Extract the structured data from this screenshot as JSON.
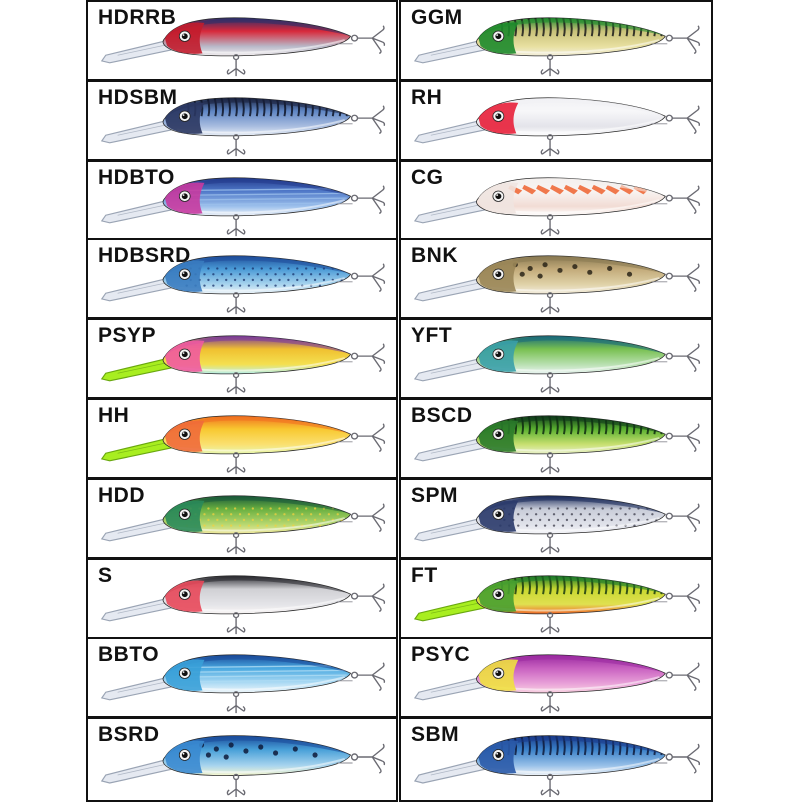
{
  "lures": [
    {
      "code": "HDRRB",
      "top": "#2a2f6a",
      "body": "#d8283a",
      "belly": "#f2eef0",
      "head": "#c21c2c",
      "pattern": "none",
      "accent": "#1a1a1a",
      "lip": "clear",
      "stripe": "#b8b8c8"
    },
    {
      "code": "GGM",
      "top": "#1f8a2e",
      "body": "#c9c27a",
      "belly": "#f2eedb",
      "head": "#1d8a2b",
      "pattern": "bars",
      "accent": "#1a1a1a",
      "lip": "clear",
      "stripe": "#e8e0a0"
    },
    {
      "code": "HDSBM",
      "top": "#1b2340",
      "body": "#5f86c4",
      "belly": "#e8eef6",
      "head": "#2a3660",
      "pattern": "bars",
      "accent": "#0e1426",
      "lip": "clear",
      "stripe": "#a9bde0"
    },
    {
      "code": "RH",
      "top": "#f1f1f4",
      "body": "#f7f7f9",
      "belly": "#ffffff",
      "head": "#e8203a",
      "pattern": "none",
      "accent": "#c8c8cc",
      "lip": "clear",
      "stripe": "#e4e4ea"
    },
    {
      "code": "HDBTO",
      "top": "#233a8c",
      "body": "#4f78c8",
      "belly": "#eef2f8",
      "head": "#c83aa0",
      "pattern": "stripes",
      "accent": "#1a2a6a",
      "lip": "clear",
      "stripe": "#9cc0ec"
    },
    {
      "code": "CG",
      "top": "#f4f0ee",
      "body": "#f8f4f2",
      "belly": "#ffffff",
      "head": "#f0e4e0",
      "pattern": "orange",
      "accent": "#ee6a3a",
      "lip": "clear",
      "stripe": "#f2dcd4"
    },
    {
      "code": "HDBSRD",
      "top": "#1f4d9a",
      "body": "#4a9ad6",
      "belly": "#eef4f8",
      "head": "#3a7cc0",
      "pattern": "dots",
      "accent": "#18306a",
      "lip": "clear",
      "stripe": "#a8d4ee"
    },
    {
      "code": "BNK",
      "top": "#8a7a52",
      "body": "#c2aa7a",
      "belly": "#f2ecdc",
      "head": "#9a8658",
      "pattern": "spots",
      "accent": "#2a2418",
      "lip": "clear",
      "stripe": "#e0d2a8"
    },
    {
      "code": "PSYP",
      "top": "#7a3a9a",
      "body": "#f0c030",
      "belly": "#b8f0ee",
      "head": "#f05aa0",
      "pattern": "none",
      "accent": "#48b8e0",
      "lip": "chartreuse",
      "stripe": "#f4e050"
    },
    {
      "code": "YFT",
      "top": "#1a6a7a",
      "body": "#78c050",
      "belly": "#eaf4f2",
      "head": "#3aa0a8",
      "pattern": "none",
      "accent": "#e8d030",
      "lip": "clear",
      "stripe": "#b8e0b0"
    },
    {
      "code": "HH",
      "top": "#f07020",
      "body": "#f8c830",
      "belly": "#e8f8b0",
      "head": "#f06a3a",
      "pattern": "none",
      "accent": "#f0d030",
      "lip": "chartreuse",
      "stripe": "#fae070"
    },
    {
      "code": "BSCD",
      "top": "#0e3a1a",
      "body": "#5ab030",
      "belly": "#e8f0c8",
      "head": "#2a7a2a",
      "pattern": "bars",
      "accent": "#0e2a10",
      "lip": "clear",
      "stripe": "#c8e070"
    },
    {
      "code": "HDD",
      "top": "#1a5a3a",
      "body": "#6ab040",
      "belly": "#f0e8a0",
      "head": "#2a8a5a",
      "pattern": "dots",
      "accent": "#f0d040",
      "lip": "clear",
      "stripe": "#b8d870"
    },
    {
      "code": "SPM",
      "top": "#1a2a5a",
      "body": "#c8ccd8",
      "belly": "#f4f4f8",
      "head": "#2a3a6a",
      "pattern": "dots",
      "accent": "#3a3a48",
      "lip": "clear",
      "stripe": "#e0e2ea"
    },
    {
      "code": "S",
      "top": "#2a2a30",
      "body": "#d0d0d4",
      "belly": "#f8f4f4",
      "head": "#e8485a",
      "pattern": "none",
      "accent": "#b0b0b8",
      "lip": "clear",
      "stripe": "#e4e4e8"
    },
    {
      "code": "FT",
      "top": "#1a7a2a",
      "body": "#c8d830",
      "belly": "#f06a2a",
      "head": "#48a030",
      "pattern": "bars",
      "accent": "#1a3a10",
      "lip": "chartreuse",
      "stripe": "#e0e050"
    },
    {
      "code": "BBTO",
      "top": "#1a4a9a",
      "body": "#48a8e0",
      "belly": "#eef6fa",
      "head": "#38a0d8",
      "pattern": "stripes",
      "accent": "#0e2a6a",
      "lip": "clear",
      "stripe": "#b0dcf4"
    },
    {
      "code": "PSYC",
      "top": "#9a2aa0",
      "body": "#c860c0",
      "belly": "#f8d0e0",
      "head": "#f0e040",
      "pattern": "none",
      "accent": "#f080b0",
      "lip": "clear",
      "stripe": "#e8a0d8"
    },
    {
      "code": "BSRD",
      "top": "#1a4a9a",
      "body": "#48a0d8",
      "belly": "#f8f8d0",
      "head": "#3a8ad0",
      "pattern": "spots",
      "accent": "#0e1a3a",
      "lip": "clear",
      "stripe": "#a8d4ee"
    },
    {
      "code": "SBM",
      "top": "#1a3a8a",
      "body": "#3a80c8",
      "belly": "#f0f4f8",
      "head": "#2a5aa8",
      "pattern": "bars",
      "accent": "#0e1a3a",
      "lip": "clear",
      "stripe": "#98c0e8"
    }
  ]
}
